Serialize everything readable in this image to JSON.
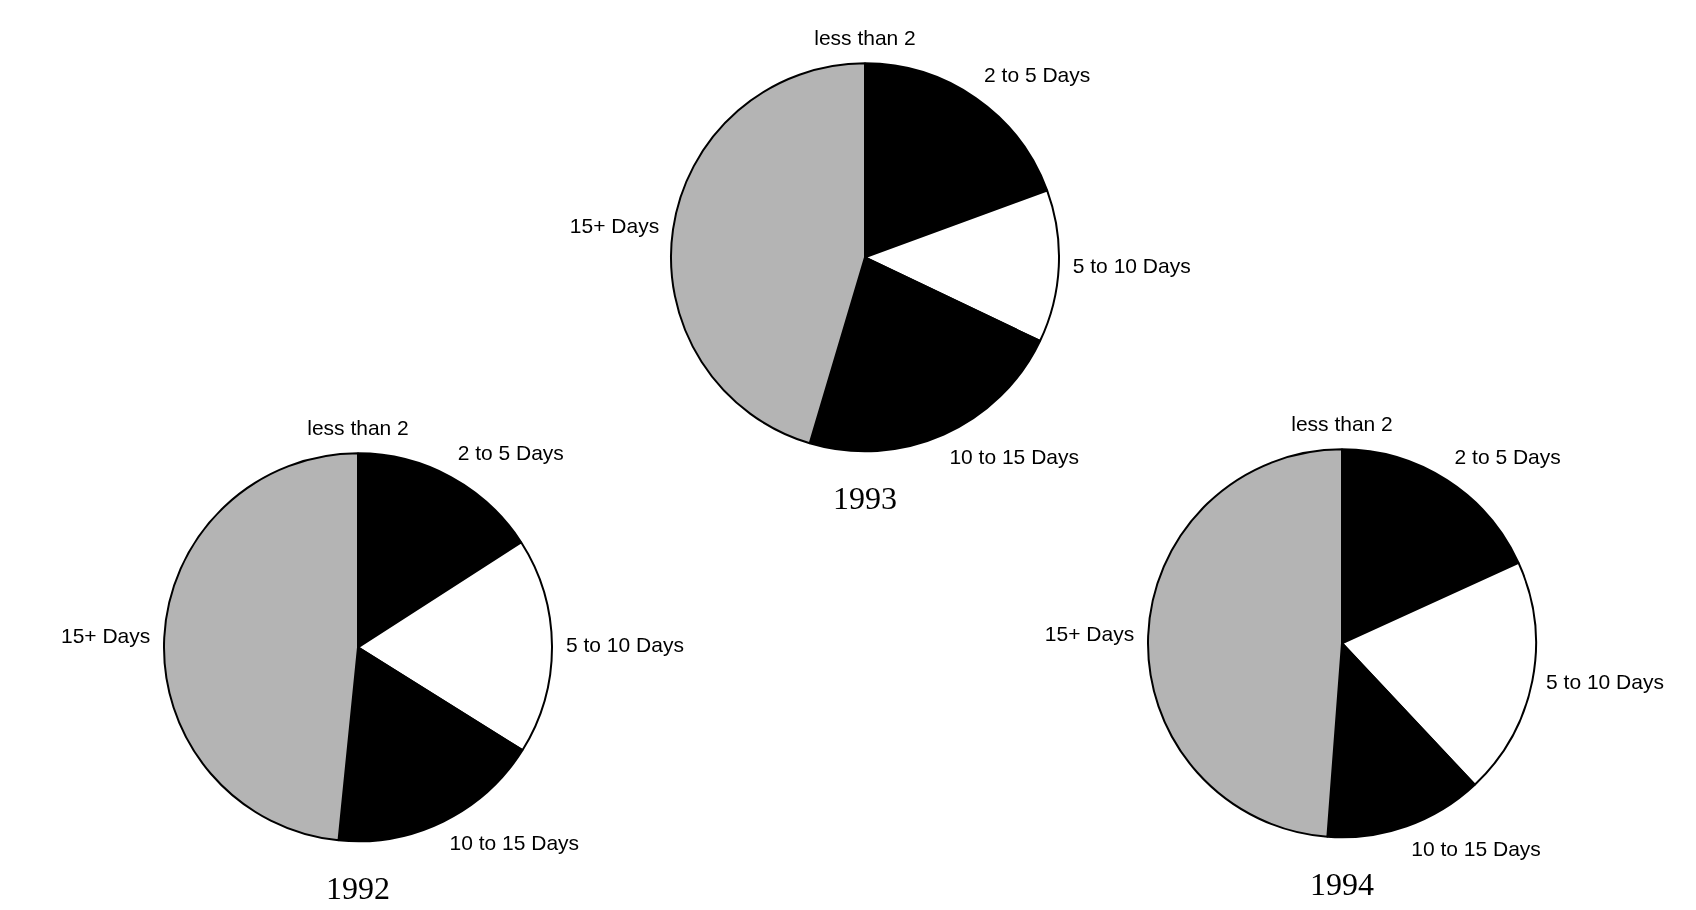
{
  "chart_data": [
    {
      "type": "pie",
      "title": "1992",
      "categories": [
        "less than 2",
        "2 to 5 Days",
        "5 to 10 Days",
        "10 to 15 Days",
        "15+ Days"
      ],
      "values": [
        null,
        15.9,
        18,
        17.7,
        48.4
      ],
      "colors": [
        "#000000",
        "#000000",
        "#ffffff",
        "#000000",
        "#b4b4b4"
      ],
      "legend": false
    },
    {
      "type": "pie",
      "title": "1993",
      "categories": [
        "less than 2",
        "2 to 5 Days",
        "5 to 10 Days",
        "10 to 15 Days",
        "15+ Days"
      ],
      "values": [
        null,
        19.4,
        12.7,
        22.5,
        45.4
      ],
      "colors": [
        "#000000",
        "#000000",
        "#ffffff",
        "#000000",
        "#b4b4b4"
      ],
      "legend": false
    },
    {
      "type": "pie",
      "title": "1994",
      "categories": [
        "less than 2",
        "2 to 5 Days",
        "5 to 10 Days",
        "10 to 15 Days",
        "15+ Days"
      ],
      "values": [
        null,
        18.2,
        19.8,
        13.2,
        48.8
      ],
      "colors": [
        "#000000",
        "#000000",
        "#ffffff",
        "#000000",
        "#b4b4b4"
      ],
      "legend": false
    }
  ]
}
